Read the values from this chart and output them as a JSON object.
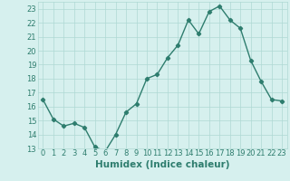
{
  "x": [
    0,
    1,
    2,
    3,
    4,
    5,
    6,
    7,
    8,
    9,
    10,
    11,
    12,
    13,
    14,
    15,
    16,
    17,
    18,
    19,
    20,
    21,
    22,
    23
  ],
  "y": [
    16.5,
    15.1,
    14.6,
    14.8,
    14.5,
    13.1,
    12.8,
    14.0,
    15.6,
    16.2,
    18.0,
    18.3,
    19.5,
    20.4,
    22.2,
    21.2,
    22.8,
    23.2,
    22.2,
    21.6,
    19.3,
    17.8,
    16.5,
    16.4
  ],
  "line_color": "#2e7d6e",
  "marker": "D",
  "marker_size": 2.2,
  "bg_color": "#d6f0ee",
  "grid_color": "#aed8d4",
  "xlabel": "Humidex (Indice chaleur)",
  "ylim": [
    13,
    23.5
  ],
  "xlim": [
    -0.5,
    23.5
  ],
  "yticks": [
    13,
    14,
    15,
    16,
    17,
    18,
    19,
    20,
    21,
    22,
    23
  ],
  "xticks": [
    0,
    1,
    2,
    3,
    4,
    5,
    6,
    7,
    8,
    9,
    10,
    11,
    12,
    13,
    14,
    15,
    16,
    17,
    18,
    19,
    20,
    21,
    22,
    23
  ],
  "tick_label_fontsize": 6.0,
  "xlabel_fontsize": 7.5,
  "linewidth": 1.0
}
